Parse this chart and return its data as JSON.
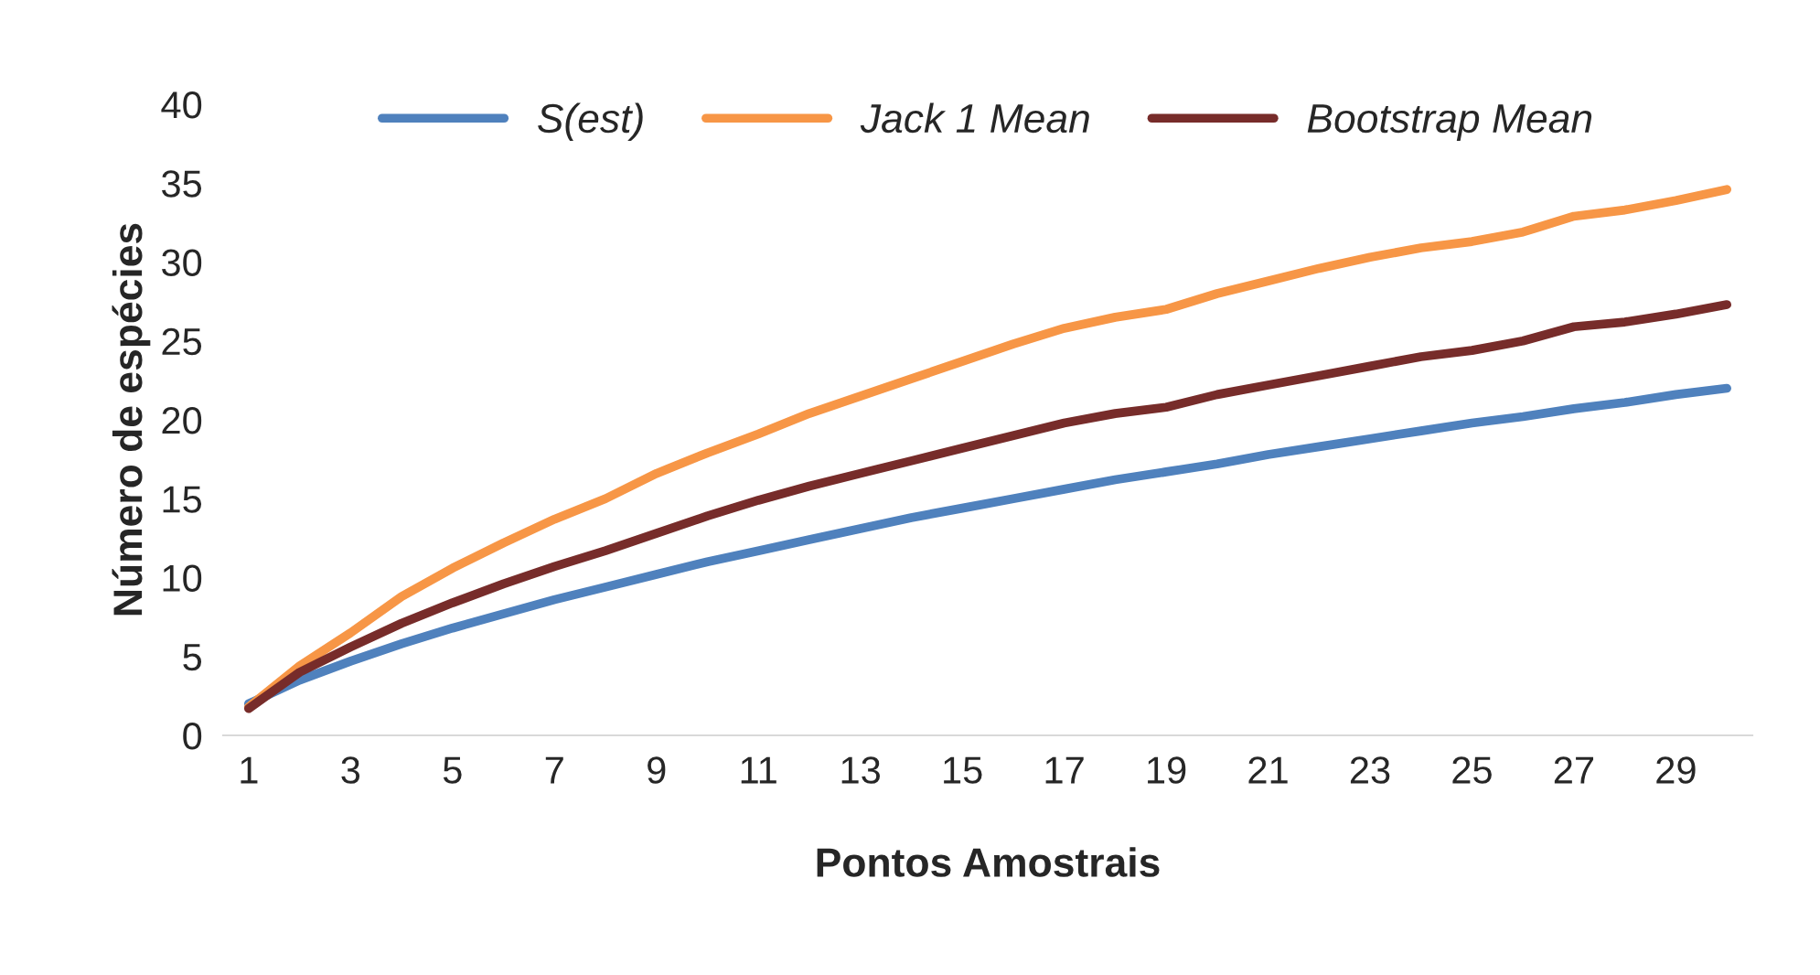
{
  "chart_data": {
    "type": "line",
    "xlabel": "Pontos Amostrais",
    "ylabel": "Número de espécies",
    "categories": [
      "1",
      null,
      "3",
      null,
      "5",
      null,
      "7",
      null,
      "9",
      null,
      "11",
      null,
      "13",
      null,
      "15",
      null,
      "17",
      null,
      "19",
      null,
      "21",
      null,
      "23",
      null,
      "25",
      null,
      "27",
      null,
      "29",
      null
    ],
    "series": [
      {
        "name": "S(est)",
        "color": "#4f81bd",
        "values": [
          2,
          3.5,
          4.7,
          5.8,
          6.8,
          7.7,
          8.6,
          9.4,
          10.2,
          11.0,
          11.7,
          12.4,
          13.1,
          13.8,
          14.4,
          15.0,
          15.6,
          16.2,
          16.7,
          17.2,
          17.8,
          18.3,
          18.8,
          19.3,
          19.8,
          20.2,
          20.7,
          21.1,
          21.6,
          22.0
        ]
      },
      {
        "name": "Jack 1 Mean",
        "color": "#f79646",
        "values": [
          1.8,
          4.4,
          6.5,
          8.8,
          10.6,
          12.2,
          13.7,
          15.0,
          16.6,
          17.9,
          19.1,
          20.4,
          21.5,
          22.6,
          23.7,
          24.8,
          25.8,
          26.5,
          27.0,
          28.0,
          28.8,
          29.6,
          30.3,
          30.9,
          31.3,
          31.9,
          32.9,
          33.3,
          33.9,
          34.6
        ]
      },
      {
        "name": "Bootstrap Mean",
        "color": "#772c2a",
        "values": [
          1.7,
          4.0,
          5.6,
          7.1,
          8.4,
          9.6,
          10.7,
          11.7,
          12.8,
          13.9,
          14.9,
          15.8,
          16.6,
          17.4,
          18.2,
          19.0,
          19.8,
          20.4,
          20.8,
          21.6,
          22.2,
          22.8,
          23.4,
          24.0,
          24.4,
          25.0,
          25.9,
          26.2,
          26.7,
          27.3
        ]
      }
    ],
    "ylim": [
      0,
      40
    ],
    "yticks": [
      0,
      5,
      10,
      15,
      20,
      25,
      30,
      35,
      40
    ],
    "grid": false,
    "legend": "top",
    "line_style": "solid",
    "marker": "none"
  }
}
